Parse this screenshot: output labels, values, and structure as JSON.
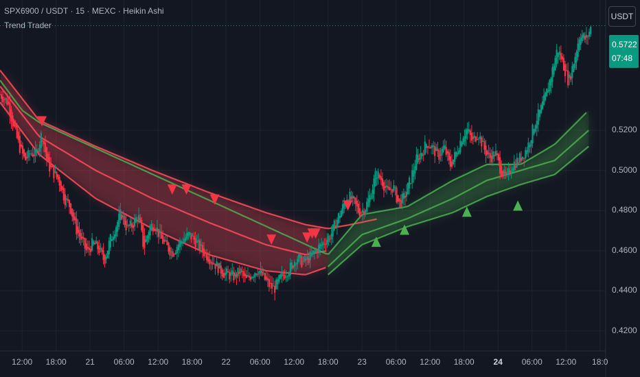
{
  "header": {
    "symbol_line": "SPX6900 / USDT · 15 · MEXC · Heikin Ashi",
    "indicator": "Trend Trader"
  },
  "currency_button": "USDT",
  "last_price": {
    "price": "0.5722",
    "countdown": "07:48",
    "value": 0.5722
  },
  "colors": {
    "background": "#131722",
    "grid": "#1e222d",
    "bull": "#089981",
    "bear": "#f23645",
    "bear_band": "#ff4d5a",
    "bull_band": "#4caf50",
    "text": "#b2b5be"
  },
  "chart_data": {
    "type": "candlestick",
    "style": "Heikin Ashi",
    "ylim": [
      0.41,
      0.585
    ],
    "y_ticks": [
      "0.5200",
      "0.5000",
      "0.4800",
      "0.4600",
      "0.4400",
      "0.4200"
    ],
    "y_tick_values": [
      0.52,
      0.5,
      0.48,
      0.46,
      0.44,
      0.42
    ],
    "x_ticks": [
      "12:00",
      "18:00",
      "21",
      "06:00",
      "12:00",
      "18:00",
      "22",
      "06:00",
      "12:00",
      "18:00",
      "23",
      "06:00",
      "12:00",
      "18:00",
      "24",
      "06:00",
      "12:00",
      "18:0"
    ],
    "x_tick_hours": [
      12,
      18,
      24,
      30,
      36,
      42,
      48,
      54,
      60,
      66,
      72,
      78,
      84,
      90,
      96,
      102,
      108,
      114
    ],
    "bold_ticks": [
      "24"
    ],
    "x_range_hours": [
      8.1,
      115
    ],
    "price_path": [
      [
        8.1,
        0.538
      ],
      [
        9.5,
        0.534
      ],
      [
        10.5,
        0.522
      ],
      [
        11.5,
        0.512
      ],
      [
        12.5,
        0.505
      ],
      [
        13.5,
        0.509
      ],
      [
        14.5,
        0.508
      ],
      [
        15.5,
        0.519
      ],
      [
        16.5,
        0.503
      ],
      [
        17.5,
        0.499
      ],
      [
        18.5,
        0.495
      ],
      [
        19.5,
        0.486
      ],
      [
        20.5,
        0.482
      ],
      [
        21.5,
        0.471
      ],
      [
        22.5,
        0.465
      ],
      [
        23.5,
        0.459
      ],
      [
        24.5,
        0.464
      ],
      [
        25.5,
        0.461
      ],
      [
        26.5,
        0.455
      ],
      [
        27.5,
        0.465
      ],
      [
        28.5,
        0.472
      ],
      [
        29.5,
        0.479
      ],
      [
        30.5,
        0.471
      ],
      [
        31.5,
        0.473
      ],
      [
        32.5,
        0.478
      ],
      [
        33.5,
        0.461
      ],
      [
        34.5,
        0.472
      ],
      [
        35.5,
        0.473
      ],
      [
        36.5,
        0.466
      ],
      [
        37.5,
        0.462
      ],
      [
        38.5,
        0.459
      ],
      [
        39.5,
        0.463
      ],
      [
        40.5,
        0.466
      ],
      [
        41.5,
        0.468
      ],
      [
        42.5,
        0.465
      ],
      [
        43.5,
        0.461
      ],
      [
        44.5,
        0.458
      ],
      [
        45.5,
        0.455
      ],
      [
        46.5,
        0.452
      ],
      [
        47.5,
        0.449
      ],
      [
        48.5,
        0.448
      ],
      [
        49.5,
        0.447
      ],
      [
        50.5,
        0.45
      ],
      [
        51.5,
        0.445
      ],
      [
        52.5,
        0.448
      ],
      [
        53.5,
        0.451
      ],
      [
        54.5,
        0.447
      ],
      [
        55.5,
        0.443
      ],
      [
        56.5,
        0.441
      ],
      [
        57.5,
        0.446
      ],
      [
        58.5,
        0.449
      ],
      [
        59.5,
        0.452
      ],
      [
        60.5,
        0.457
      ],
      [
        61.5,
        0.454
      ],
      [
        62.5,
        0.456
      ],
      [
        63.5,
        0.459
      ],
      [
        64.5,
        0.462
      ],
      [
        65.5,
        0.465
      ],
      [
        66.5,
        0.468
      ],
      [
        67.5,
        0.475
      ],
      [
        68.5,
        0.481
      ],
      [
        69.5,
        0.488
      ],
      [
        70.5,
        0.484
      ],
      [
        71.5,
        0.479
      ],
      [
        72.5,
        0.481
      ],
      [
        73.5,
        0.488
      ],
      [
        74.5,
        0.499
      ],
      [
        75.5,
        0.495
      ],
      [
        76.5,
        0.489
      ],
      [
        77.5,
        0.492
      ],
      [
        78.5,
        0.483
      ],
      [
        79.5,
        0.487
      ],
      [
        80.5,
        0.495
      ],
      [
        81.5,
        0.505
      ],
      [
        82.5,
        0.509
      ],
      [
        83.5,
        0.514
      ],
      [
        84.5,
        0.511
      ],
      [
        85.5,
        0.507
      ],
      [
        86.5,
        0.512
      ],
      [
        87.5,
        0.502
      ],
      [
        88.5,
        0.508
      ],
      [
        89.5,
        0.516
      ],
      [
        90.5,
        0.521
      ],
      [
        91.5,
        0.514
      ],
      [
        92.5,
        0.519
      ],
      [
        93.5,
        0.511
      ],
      [
        94.5,
        0.506
      ],
      [
        95.5,
        0.509
      ],
      [
        96.5,
        0.5
      ],
      [
        97.5,
        0.496
      ],
      [
        98.5,
        0.503
      ],
      [
        99.5,
        0.505
      ],
      [
        100.5,
        0.508
      ],
      [
        101.5,
        0.514
      ],
      [
        102.5,
        0.524
      ],
      [
        103.5,
        0.53
      ],
      [
        104.5,
        0.538
      ],
      [
        105.5,
        0.549
      ],
      [
        106.5,
        0.561
      ],
      [
        107.5,
        0.553
      ],
      [
        108.5,
        0.544
      ],
      [
        109.5,
        0.556
      ],
      [
        110.5,
        0.569
      ],
      [
        111.5,
        0.565
      ],
      [
        112.5,
        0.572
      ]
    ],
    "bands": {
      "bear": {
        "upper": [
          [
            8.1,
            0.55
          ],
          [
            15,
            0.525
          ],
          [
            25,
            0.512
          ],
          [
            35,
            0.5
          ],
          [
            45,
            0.489
          ],
          [
            55,
            0.479
          ],
          [
            62,
            0.473
          ],
          [
            66,
            0.471
          ],
          [
            70,
            0.473
          ],
          [
            75,
            0.476
          ]
        ],
        "middle": [
          [
            8.1,
            0.542
          ],
          [
            15,
            0.517
          ],
          [
            25,
            0.5
          ],
          [
            35,
            0.486
          ],
          [
            45,
            0.474
          ],
          [
            55,
            0.463
          ],
          [
            62,
            0.458
          ],
          [
            66,
            0.46
          ]
        ],
        "lower": [
          [
            8.1,
            0.534
          ],
          [
            15,
            0.508
          ],
          [
            25,
            0.486
          ],
          [
            35,
            0.471
          ],
          [
            45,
            0.458
          ],
          [
            55,
            0.45
          ],
          [
            62,
            0.448
          ],
          [
            66,
            0.452
          ]
        ]
      },
      "bull": {
        "upper": [
          [
            8.1,
            0.545
          ],
          [
            12,
            0.53
          ],
          [
            15,
            0.524
          ],
          [
            66,
            0.458
          ],
          [
            72,
            0.478
          ],
          [
            80,
            0.482
          ],
          [
            88,
            0.495
          ],
          [
            94,
            0.503
          ],
          [
            100,
            0.503
          ],
          [
            106,
            0.513
          ],
          [
            112,
            0.53
          ]
        ],
        "middle": [
          [
            66,
            0.452
          ],
          [
            72,
            0.468
          ],
          [
            80,
            0.476
          ],
          [
            88,
            0.486
          ],
          [
            94,
            0.495
          ],
          [
            100,
            0.5
          ],
          [
            106,
            0.505
          ],
          [
            112,
            0.52
          ]
        ],
        "lower": [
          [
            66,
            0.448
          ],
          [
            72,
            0.463
          ],
          [
            80,
            0.472
          ],
          [
            88,
            0.479
          ],
          [
            94,
            0.487
          ],
          [
            100,
            0.493
          ],
          [
            106,
            0.498
          ],
          [
            112,
            0.512
          ]
        ]
      }
    },
    "sell_signals": [
      [
        15.5,
        0.524
      ],
      [
        38.5,
        0.49
      ],
      [
        41,
        0.49
      ],
      [
        46,
        0.485
      ],
      [
        56,
        0.465
      ],
      [
        62.3,
        0.466
      ],
      [
        63.2,
        0.468
      ],
      [
        63.8,
        0.468
      ],
      [
        69.5,
        0.482
      ]
    ],
    "buy_signals": [
      [
        74.5,
        0.465
      ],
      [
        79.5,
        0.471
      ],
      [
        90.5,
        0.48
      ],
      [
        99.5,
        0.483
      ]
    ]
  }
}
